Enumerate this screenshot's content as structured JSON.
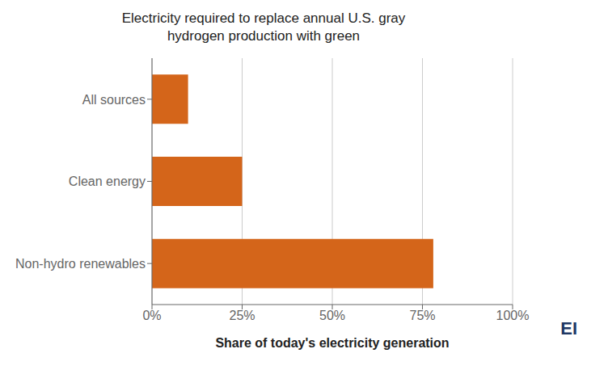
{
  "chart_data": {
    "type": "bar",
    "orientation": "horizontal",
    "title": "Electricity required to replace annual U.S. gray\nhydrogen production with green",
    "categories": [
      "Non-hydro renewables",
      "Clean energy",
      "All sources"
    ],
    "values": [
      0.78,
      0.25,
      0.1
    ],
    "color": "#D4651A",
    "xlabel": "Share of today's electricity generation",
    "xlim": [
      0,
      1.0
    ],
    "xticks": [
      {
        "value": 0,
        "label": "0%"
      },
      {
        "value": 0.25,
        "label": "25%"
      },
      {
        "value": 0.5,
        "label": "50%"
      },
      {
        "value": 0.75,
        "label": "75%"
      },
      {
        "value": 1.0,
        "label": "100%"
      }
    ],
    "grid": true,
    "annotations": [
      "EI"
    ]
  }
}
